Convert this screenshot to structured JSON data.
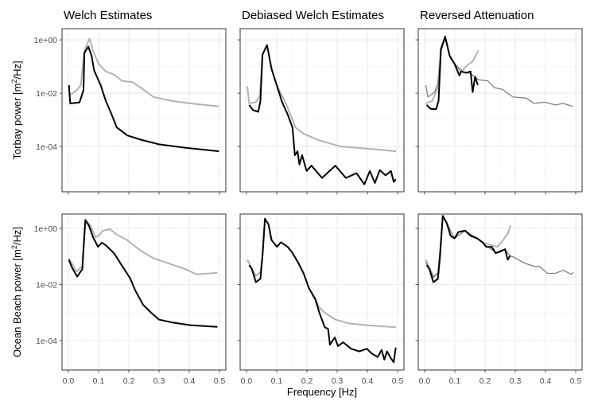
{
  "chart_data": {
    "type": "line",
    "layout": "facet-grid 2 rows x 3 columns",
    "xlabel": "Frequency [Hz]",
    "xlim": [
      -0.021,
      0.521
    ],
    "xticks": [
      0.0,
      0.1,
      0.2,
      0.3,
      0.4,
      0.5
    ],
    "xtick_labels": [
      "0.0",
      "0.1",
      "0.2",
      "0.3",
      "0.4",
      "0.5"
    ],
    "y_scale": "log10",
    "grid": true,
    "columns": [
      "Welch Estimates",
      "Debiased Welch Estimates",
      "Reversed Attenuation"
    ],
    "rows": [
      {
        "ylabel_prefix": "Torbay power [m",
        "ylabel_sup": "2",
        "ylabel_suffix": "/Hz]",
        "ylim": [
          2e-06,
          2.63
        ],
        "yticks": [
          1,
          0.01,
          0.0001
        ],
        "ytick_labels": [
          "1e+00",
          "1e-02",
          "1e-04"
        ]
      },
      {
        "ylabel_prefix": "Ocean Beach power [m",
        "ylabel_sup": "2",
        "ylabel_suffix": "/Hz]",
        "ylim": [
          8.9e-06,
          3.24
        ],
        "yticks": [
          1,
          0.01,
          0.0001
        ],
        "ytick_labels": [
          "1e+00",
          "1e-02",
          "1e-04"
        ]
      }
    ],
    "series_colors": {
      "light": "#b3b3b3",
      "medium": "#808080",
      "black": "#000000"
    },
    "panels": [
      {
        "row": 0,
        "col": 0,
        "series": [
          {
            "color": "light",
            "x": [
              0.003,
              0.028,
              0.041,
              0.053,
              0.07,
              0.081,
              0.1,
              0.124,
              0.15,
              0.177,
              0.212,
              0.247,
              0.282,
              0.343,
              0.405,
              0.498
            ],
            "y": [
              0.0081,
              0.013,
              0.02,
              0.4,
              1.12,
              0.4,
              0.126,
              0.065,
              0.051,
              0.029,
              0.026,
              0.014,
              0.0072,
              0.0051,
              0.0041,
              0.0032
            ]
          },
          {
            "color": "black",
            "x": [
              0.002,
              0.006,
              0.037,
              0.05,
              0.053,
              0.066,
              0.077,
              0.085,
              0.107,
              0.124,
              0.142,
              0.16,
              0.195,
              0.239,
              0.3,
              0.388,
              0.498
            ],
            "y": [
              0.02,
              0.0041,
              0.0045,
              0.013,
              0.32,
              0.56,
              0.25,
              0.072,
              0.02,
              0.0051,
              0.0017,
              0.00052,
              0.00026,
              0.00018,
              0.00012,
              8.9e-05,
              6.6e-05
            ]
          }
        ]
      },
      {
        "row": 0,
        "col": 1,
        "series": [
          {
            "color": "light",
            "x": [
              0.003,
              0.009,
              0.031,
              0.044,
              0.053,
              0.068,
              0.083,
              0.1,
              0.127,
              0.145,
              0.162,
              0.189,
              0.241,
              0.311,
              0.399,
              0.495
            ],
            "y": [
              0.018,
              0.0041,
              0.0046,
              0.0081,
              0.28,
              0.63,
              0.081,
              0.02,
              0.0051,
              0.0016,
              0.00052,
              0.0003,
              0.00017,
              0.0001,
              8.3e-05,
              6.6e-05
            ]
          },
          {
            "color": "black",
            "x": [
              0.009,
              0.022,
              0.039,
              0.046,
              0.053,
              0.068,
              0.083,
              0.1,
              0.118,
              0.136,
              0.152,
              0.16,
              0.169,
              0.175,
              0.184,
              0.199,
              0.215,
              0.25,
              0.294,
              0.329,
              0.364,
              0.39,
              0.408,
              0.425,
              0.441,
              0.46,
              0.478,
              0.487,
              0.494
            ],
            "y": [
              0.0036,
              0.0023,
              0.002,
              0.0051,
              0.28,
              0.63,
              0.081,
              0.02,
              0.0046,
              0.0016,
              0.00052,
              4.7e-05,
              6.6e-05,
              2.1e-05,
              4.7e-05,
              1.2e-05,
              1.9e-05,
              6.6e-06,
              1.9e-05,
              6.6e-06,
              1e-05,
              3.8e-06,
              1.2e-05,
              4.3e-06,
              1.3e-05,
              8.3e-06,
              1.2e-05,
              4.7e-06,
              5.9e-06
            ]
          }
        ]
      },
      {
        "row": 0,
        "col": 2,
        "series": [
          {
            "color": "light",
            "x": [
              0.004,
              0.025,
              0.042,
              0.054,
              0.068,
              0.083,
              0.099,
              0.112,
              0.125,
              0.143,
              0.16,
              0.178
            ],
            "y": [
              0.0041,
              0.0051,
              0.014,
              0.45,
              1.32,
              0.25,
              0.126,
              0.091,
              0.072,
              0.115,
              0.16,
              0.4
            ]
          },
          {
            "color": "medium",
            "x": [
              0.004,
              0.011,
              0.033,
              0.045,
              0.055,
              0.068,
              0.083,
              0.1,
              0.12,
              0.15,
              0.178,
              0.209,
              0.231,
              0.257,
              0.292,
              0.336,
              0.362,
              0.397,
              0.432,
              0.459,
              0.49
            ],
            "y": [
              0.02,
              0.0072,
              0.011,
              0.025,
              0.4,
              1.12,
              0.25,
              0.126,
              0.063,
              0.056,
              0.032,
              0.029,
              0.016,
              0.014,
              0.0072,
              0.0065,
              0.0041,
              0.0046,
              0.0036,
              0.0041,
              0.0032
            ]
          },
          {
            "color": "black",
            "x": [
              0.007,
              0.02,
              0.038,
              0.046,
              0.054,
              0.068,
              0.083,
              0.099,
              0.115,
              0.121,
              0.138,
              0.152,
              0.159,
              0.167,
              0.176
            ],
            "y": [
              0.0036,
              0.0026,
              0.0025,
              0.0051,
              0.45,
              1.32,
              0.25,
              0.126,
              0.046,
              0.065,
              0.058,
              0.065,
              0.011,
              0.041,
              0.02
            ]
          }
        ]
      },
      {
        "row": 1,
        "col": 0,
        "series": [
          {
            "color": "light",
            "x": [
              0.002,
              0.027,
              0.046,
              0.056,
              0.073,
              0.09,
              0.1,
              0.114,
              0.138,
              0.16,
              0.195,
              0.239,
              0.282,
              0.335,
              0.388,
              0.423,
              0.493
            ],
            "y": [
              0.085,
              0.029,
              0.044,
              2.1,
              1.26,
              0.48,
              0.54,
              0.83,
              0.93,
              0.6,
              0.38,
              0.16,
              0.085,
              0.055,
              0.035,
              0.023,
              0.026
            ]
          },
          {
            "color": "black",
            "x": [
              0.002,
              0.01,
              0.029,
              0.046,
              0.056,
              0.068,
              0.082,
              0.098,
              0.111,
              0.124,
              0.151,
              0.182,
              0.204,
              0.221,
              0.247,
              0.274,
              0.3,
              0.344,
              0.405,
              0.493
            ],
            "y": [
              0.076,
              0.044,
              0.019,
              0.035,
              1.95,
              1.26,
              0.48,
              0.22,
              0.31,
              0.25,
              0.13,
              0.039,
              0.017,
              0.0062,
              0.0019,
              0.00098,
              0.00056,
              0.00044,
              0.00035,
              0.00031
            ]
          }
        ]
      },
      {
        "row": 1,
        "col": 1,
        "series": [
          {
            "color": "light",
            "x": [
              0.003,
              0.031,
              0.046,
              0.053,
              0.061,
              0.073,
              0.083,
              0.101,
              0.114,
              0.136,
              0.15,
              0.171,
              0.189,
              0.206,
              0.228,
              0.241,
              0.259,
              0.294,
              0.338,
              0.399,
              0.495
            ],
            "y": [
              0.076,
              0.02,
              0.028,
              0.105,
              2.2,
              1.38,
              0.38,
              0.22,
              0.32,
              0.22,
              0.145,
              0.06,
              0.025,
              0.0076,
              0.0032,
              0.0015,
              0.00098,
              0.00056,
              0.00041,
              0.00035,
              0.0003
            ]
          },
          {
            "color": "black",
            "x": [
              0.009,
              0.018,
              0.031,
              0.046,
              0.053,
              0.061,
              0.073,
              0.083,
              0.101,
              0.114,
              0.136,
              0.15,
              0.171,
              0.189,
              0.206,
              0.228,
              0.241,
              0.259,
              0.27,
              0.276,
              0.292,
              0.303,
              0.32,
              0.346,
              0.373,
              0.399,
              0.412,
              0.434,
              0.447,
              0.456,
              0.465,
              0.478,
              0.487,
              0.494
            ],
            "y": [
              0.049,
              0.035,
              0.012,
              0.016,
              0.105,
              2.2,
              1.38,
              0.38,
              0.22,
              0.32,
              0.22,
              0.145,
              0.06,
              0.025,
              0.0076,
              0.0029,
              0.00098,
              0.0003,
              0.00026,
              7.1e-05,
              0.00013,
              6.3e-05,
              8.7e-05,
              5.1e-05,
              4.1e-05,
              5.1e-05,
              3.6e-05,
              2.6e-05,
              4.6e-05,
              2.1e-05,
              4.1e-05,
              2.3e-05,
              1.7e-05,
              5.6e-05
            ]
          }
        ]
      },
      {
        "row": 1,
        "col": 2,
        "series": [
          {
            "color": "light",
            "x": [
              0.004,
              0.029,
              0.044,
              0.051,
              0.06,
              0.073,
              0.086,
              0.099,
              0.112,
              0.134,
              0.152,
              0.174,
              0.191,
              0.222,
              0.24,
              0.257,
              0.275,
              0.285
            ],
            "y": [
              0.076,
              0.02,
              0.025,
              0.105,
              2.8,
              1.58,
              0.54,
              0.44,
              0.74,
              0.83,
              0.54,
              0.44,
              0.32,
              0.25,
              0.22,
              0.35,
              0.66,
              1.26
            ]
          },
          {
            "color": "medium",
            "x": [
              0.004,
              0.029,
              0.044,
              0.06,
              0.073,
              0.099,
              0.134,
              0.174,
              0.204,
              0.235,
              0.266,
              0.283,
              0.296,
              0.327,
              0.362,
              0.38,
              0.406,
              0.432,
              0.459,
              0.485,
              0.492
            ],
            "y": [
              0.063,
              0.018,
              0.025,
              2.5,
              1.58,
              0.44,
              0.83,
              0.44,
              0.24,
              0.14,
              0.18,
              0.105,
              0.093,
              0.06,
              0.044,
              0.044,
              0.025,
              0.025,
              0.032,
              0.023,
              0.027
            ]
          },
          {
            "color": "black",
            "x": [
              0.007,
              0.016,
              0.029,
              0.044,
              0.051,
              0.06,
              0.073,
              0.086,
              0.099,
              0.112,
              0.134,
              0.152,
              0.174,
              0.191,
              0.204,
              0.222,
              0.235,
              0.248,
              0.266,
              0.275,
              0.283
            ],
            "y": [
              0.049,
              0.035,
              0.012,
              0.016,
              0.105,
              2.8,
              1.58,
              0.54,
              0.44,
              0.74,
              0.83,
              0.54,
              0.44,
              0.32,
              0.22,
              0.22,
              0.13,
              0.145,
              0.18,
              0.076,
              0.105
            ]
          }
        ]
      }
    ]
  }
}
